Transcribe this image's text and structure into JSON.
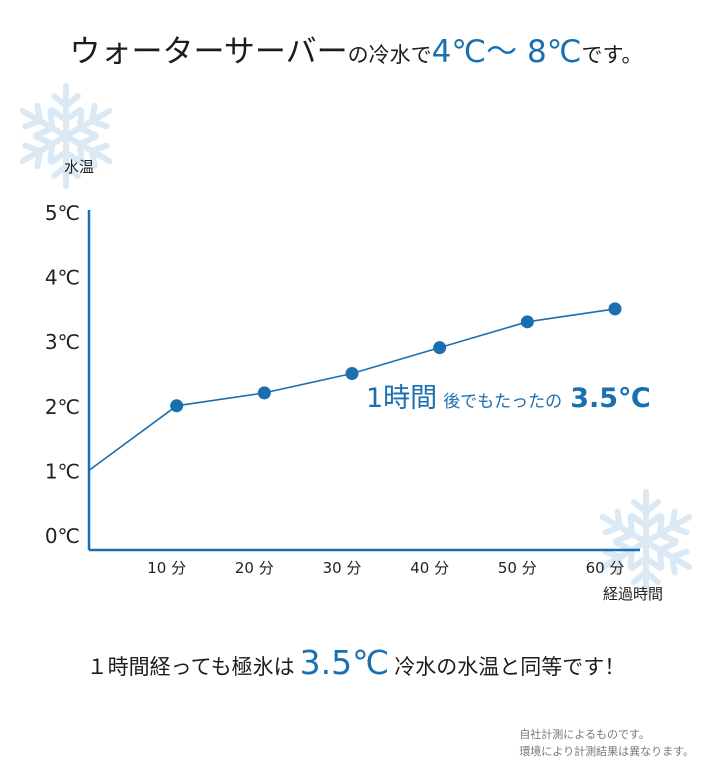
{
  "headline": {
    "part1": "ウォーターサーバー",
    "part2": "の冷水で",
    "part3": "4℃〜 8℃",
    "part4": "です。"
  },
  "chart_data": {
    "type": "line",
    "title": "",
    "xlabel": "経過時間",
    "ylabel": "水温",
    "x": [
      0,
      10,
      20,
      30,
      40,
      50,
      60
    ],
    "values": [
      1.0,
      2.0,
      2.2,
      2.5,
      2.9,
      3.3,
      3.5
    ],
    "marker_x": [
      10,
      20,
      30,
      40,
      50,
      60
    ],
    "x_tick_labels": [
      "10 分",
      "20 分",
      "30 分",
      "40 分",
      "50 分",
      "60 分"
    ],
    "y_tick_labels": [
      "0℃",
      "1℃",
      "2℃",
      "3℃",
      "4℃",
      "5℃"
    ],
    "y_ticks": [
      0,
      1,
      2,
      3,
      4,
      5
    ],
    "xlim": [
      0,
      60
    ],
    "ylim": [
      0,
      5
    ],
    "grid": false,
    "line_color": "#1a6fb0",
    "annotation": {
      "part1": "1時間",
      "part2": "後でもたったの",
      "part3": "3.5℃"
    }
  },
  "bottomline": {
    "part1": "１時間経っても極氷は",
    "part2": "3.5℃",
    "part3": "冷水の水温と同等です！"
  },
  "footnote": {
    "line1": "自社計測によるものです。",
    "line2": "環境により計測結果は異なります。"
  },
  "decoration": {
    "left_icon": "snowflake-icon",
    "right_icon": "snowflake-icon",
    "snow_color": "#dbe9f5"
  },
  "colors": {
    "accent": "#1a6fb0",
    "text": "#1c1c1c"
  }
}
